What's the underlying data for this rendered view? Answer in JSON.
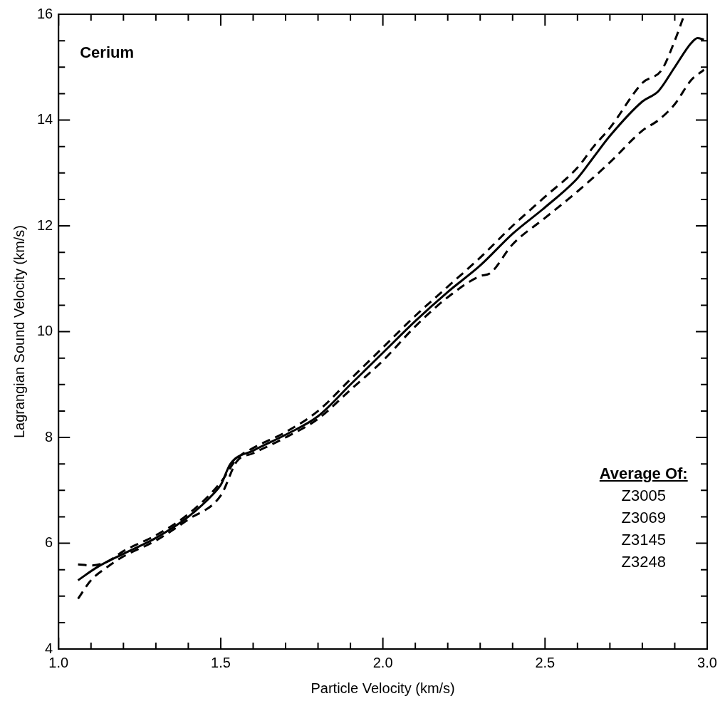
{
  "chart_data": {
    "type": "line",
    "xlabel": "Particle Velocity (km/s)",
    "ylabel": "Lagrangian Sound Velocity (km/s)",
    "annotations": [
      "Cerium",
      "Average Of:",
      "Z3005",
      "Z3069",
      "Z3145",
      "Z3248"
    ],
    "xlim": [
      1.0,
      3.0
    ],
    "xticks": [
      {
        "value": 1.0,
        "label": "1.0"
      },
      {
        "value": 1.1,
        "label": null
      },
      {
        "value": 1.2,
        "label": null
      },
      {
        "value": 1.3,
        "label": null
      },
      {
        "value": 1.4,
        "label": null
      },
      1.5,
      {
        "value": 1.6,
        "label": null
      },
      {
        "value": 1.7,
        "label": null
      },
      {
        "value": 1.8,
        "label": null
      },
      {
        "value": 1.9,
        "label": null
      },
      {
        "value": 2.0,
        "label": "2.0"
      },
      {
        "value": 2.1,
        "label": null
      },
      {
        "value": 2.2,
        "label": null
      },
      {
        "value": 2.3,
        "label": null
      },
      {
        "value": 2.4,
        "label": null
      },
      2.5,
      {
        "value": 2.6,
        "label": null
      },
      {
        "value": 2.7,
        "label": null
      },
      {
        "value": 2.8,
        "label": null
      },
      {
        "value": 2.9,
        "label": null
      },
      {
        "value": 3.0,
        "label": "3.0"
      }
    ],
    "ylim": [
      4,
      16
    ],
    "yticks": [
      4,
      {
        "value": 4.5,
        "label": null
      },
      {
        "value": 5,
        "label": null
      },
      {
        "value": 5.5,
        "label": null
      },
      6,
      {
        "value": 6.5,
        "label": null
      },
      {
        "value": 7,
        "label": null
      },
      {
        "value": 7.5,
        "label": null
      },
      8,
      {
        "value": 8.5,
        "label": null
      },
      {
        "value": 9,
        "label": null
      },
      {
        "value": 9.5,
        "label": null
      },
      10,
      {
        "value": 10.5,
        "label": null
      },
      {
        "value": 11,
        "label": null
      },
      {
        "value": 11.5,
        "label": null
      },
      12,
      {
        "value": 12.5,
        "label": null
      },
      {
        "value": 13,
        "label": null
      },
      {
        "value": 13.5,
        "label": null
      },
      14,
      {
        "value": 14.5,
        "label": null
      },
      {
        "value": 15,
        "label": null
      },
      {
        "value": 15.5,
        "label": null
      },
      16
    ],
    "grid": false,
    "legend": false,
    "marker": "none",
    "series": [
      {
        "color": "#000000",
        "line_style": "solid",
        "x": [
          1.06,
          1.12,
          1.2,
          1.3,
          1.4,
          1.48,
          1.5,
          1.53,
          1.6,
          1.7,
          1.8,
          1.9,
          2.0,
          2.1,
          2.2,
          2.3,
          2.4,
          2.5,
          2.6,
          2.65,
          2.7,
          2.8,
          2.85,
          2.9,
          2.95,
          2.97,
          2.99
        ],
        "values": [
          5.3,
          5.55,
          5.8,
          6.1,
          6.5,
          6.95,
          7.1,
          7.5,
          7.75,
          8.05,
          8.4,
          9.0,
          9.6,
          10.2,
          10.75,
          11.25,
          11.85,
          12.35,
          12.9,
          13.3,
          13.7,
          14.35,
          14.55,
          15.0,
          15.45,
          15.55,
          15.52
        ]
      },
      {
        "color": "#000000",
        "line_style": "dashed",
        "x": [
          1.06,
          1.1,
          1.15,
          1.2,
          1.3,
          1.4,
          1.5,
          1.55,
          1.6,
          1.7,
          1.8,
          1.9,
          2.0,
          2.1,
          2.2,
          2.3,
          2.4,
          2.5,
          2.6,
          2.65,
          2.7,
          2.8,
          2.86,
          2.9,
          2.93
        ],
        "values": [
          5.6,
          5.58,
          5.65,
          5.85,
          6.15,
          6.55,
          7.15,
          7.6,
          7.8,
          8.1,
          8.5,
          9.1,
          9.7,
          10.3,
          10.85,
          11.4,
          12.0,
          12.55,
          13.1,
          13.5,
          13.85,
          14.7,
          14.95,
          15.5,
          16.0
        ]
      },
      {
        "color": "#000000",
        "line_style": "dashed",
        "x": [
          1.06,
          1.1,
          1.15,
          1.2,
          1.3,
          1.4,
          1.5,
          1.55,
          1.6,
          1.7,
          1.8,
          1.9,
          2.0,
          2.1,
          2.2,
          2.3,
          2.33,
          2.4,
          2.5,
          2.6,
          2.7,
          2.8,
          2.85,
          2.9,
          2.95,
          2.99
        ],
        "values": [
          4.95,
          5.3,
          5.55,
          5.75,
          6.05,
          6.45,
          6.9,
          7.55,
          7.7,
          8.0,
          8.35,
          8.9,
          9.45,
          10.1,
          10.65,
          11.05,
          11.1,
          11.65,
          12.15,
          12.65,
          13.2,
          13.8,
          14.0,
          14.3,
          14.75,
          14.95
        ]
      }
    ]
  }
}
